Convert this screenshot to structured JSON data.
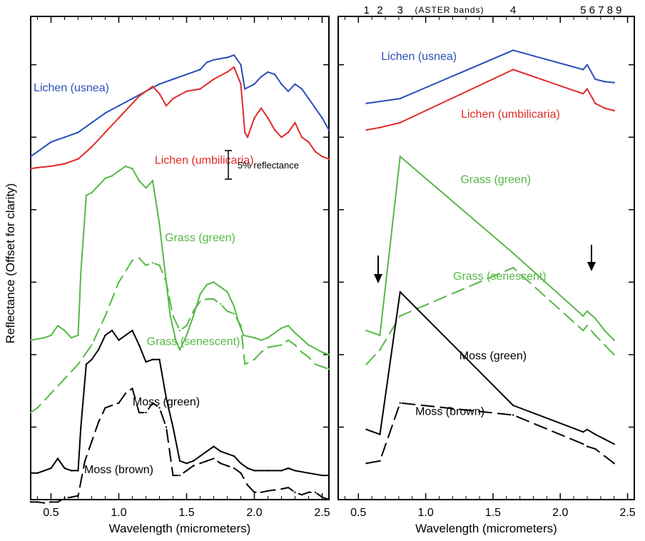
{
  "figure": {
    "ylabel": "Reflectance (Offset for clarity)",
    "top_axis": {
      "band_numbers": [
        "1",
        "2",
        "3",
        "4",
        "5",
        "6",
        "7",
        "8",
        "9"
      ],
      "label": "(ASTER bands)"
    }
  },
  "chart_data": [
    {
      "type": "line",
      "panel": "left",
      "xlabel": "Wavelength (micrometers)",
      "ylabel": "Reflectance (Offset for clarity)",
      "xlim": [
        0.35,
        2.55
      ],
      "ylim": [
        0,
        100
      ],
      "xticks": [
        0.5,
        1.0,
        1.5,
        2.0,
        2.5
      ],
      "xtick_labels": [
        "0.5",
        "1.0",
        "1.5",
        "2.0",
        "2.5"
      ],
      "scale_bar": {
        "label": "5% reflectance",
        "size": 5
      },
      "series": [
        {
          "name": "Lichen (usnea)",
          "color": "#2b4fb8",
          "dash": "solid",
          "label_at": [
            0.65,
            84.5
          ],
          "x": [
            0.35,
            0.4,
            0.45,
            0.5,
            0.55,
            0.6,
            0.7,
            0.8,
            0.9,
            1.0,
            1.1,
            1.2,
            1.3,
            1.4,
            1.5,
            1.6,
            1.65,
            1.7,
            1.8,
            1.85,
            1.9,
            1.93,
            2.0,
            2.05,
            2.1,
            2.15,
            2.2,
            2.25,
            2.3,
            2.35,
            2.4,
            2.45,
            2.5,
            2.55
          ],
          "y": [
            71,
            72,
            73,
            74,
            74.5,
            75,
            76,
            78,
            80,
            81.5,
            83,
            84.5,
            86,
            87,
            88,
            89,
            90.5,
            91,
            91.5,
            92,
            90,
            85,
            86,
            87.5,
            88.5,
            88,
            86,
            84.5,
            86,
            85,
            83,
            81,
            79,
            76.5
          ]
        },
        {
          "name": "Lichen (umbilicaria)",
          "color": "#e02b27",
          "dash": "solid",
          "label_at": [
            1.63,
            69.5
          ],
          "x": [
            0.35,
            0.4,
            0.5,
            0.6,
            0.7,
            0.8,
            0.9,
            1.0,
            1.1,
            1.15,
            1.2,
            1.25,
            1.3,
            1.35,
            1.4,
            1.5,
            1.6,
            1.7,
            1.8,
            1.85,
            1.9,
            1.93,
            1.95,
            2.0,
            2.05,
            2.1,
            2.15,
            2.2,
            2.25,
            2.3,
            2.35,
            2.4,
            2.45,
            2.5,
            2.55
          ],
          "y": [
            68.5,
            68.7,
            69,
            69.5,
            70.5,
            73,
            76,
            79,
            82,
            83.5,
            84.5,
            85.5,
            84,
            81.5,
            83,
            84.5,
            85,
            87,
            88.5,
            89.5,
            86,
            76,
            75,
            79,
            81,
            79,
            76.5,
            75,
            76,
            78,
            75,
            74,
            72,
            71,
            70.5
          ]
        },
        {
          "name": "Grass (green)",
          "color": "#56b846",
          "dash": "solid",
          "label_at": [
            1.6,
            53.5
          ],
          "x": [
            0.35,
            0.45,
            0.5,
            0.55,
            0.6,
            0.65,
            0.7,
            0.72,
            0.76,
            0.8,
            0.85,
            0.9,
            0.95,
            1.0,
            1.05,
            1.1,
            1.15,
            1.2,
            1.25,
            1.3,
            1.35,
            1.38,
            1.42,
            1.45,
            1.5,
            1.55,
            1.6,
            1.65,
            1.7,
            1.75,
            1.8,
            1.85,
            1.88,
            1.92,
            2.0,
            2.05,
            2.1,
            2.2,
            2.25,
            2.3,
            2.4,
            2.5,
            2.55
          ],
          "y": [
            33,
            33.5,
            34,
            36,
            35,
            33.5,
            34,
            47,
            63,
            63.5,
            65,
            66.5,
            67,
            68,
            69,
            68.5,
            66,
            64.5,
            66,
            57,
            45,
            38,
            33,
            31,
            34,
            38,
            42.5,
            44.5,
            45,
            44,
            43,
            40,
            37,
            34,
            33.5,
            33,
            33.5,
            35.5,
            36,
            34.5,
            32,
            30.5,
            30
          ]
        },
        {
          "name": "Grass (senescent)",
          "color": "#56b846",
          "dash": "dashed",
          "label_at": [
            1.55,
            32
          ],
          "x": [
            0.35,
            0.4,
            0.5,
            0.6,
            0.7,
            0.8,
            0.9,
            1.0,
            1.1,
            1.15,
            1.2,
            1.25,
            1.3,
            1.35,
            1.4,
            1.45,
            1.5,
            1.55,
            1.6,
            1.65,
            1.7,
            1.75,
            1.8,
            1.85,
            1.9,
            1.93,
            2.0,
            2.05,
            2.1,
            2.2,
            2.25,
            2.3,
            2.35,
            2.4,
            2.45,
            2.5,
            2.55
          ],
          "y": [
            18,
            19,
            22,
            25,
            28,
            32,
            38,
            45,
            49.5,
            50,
            48.5,
            49,
            48.5,
            45,
            38,
            35,
            36,
            39,
            41,
            41.5,
            41.5,
            40.5,
            39,
            38.5,
            36,
            28,
            29,
            30.5,
            31.5,
            32,
            33,
            32,
            30.5,
            29.5,
            28,
            27.5,
            27
          ]
        },
        {
          "name": "Moss (green)",
          "color": "#000000",
          "dash": "solid",
          "label_at": [
            1.35,
            19.5
          ],
          "x": [
            0.35,
            0.4,
            0.45,
            0.5,
            0.55,
            0.6,
            0.65,
            0.7,
            0.72,
            0.76,
            0.8,
            0.85,
            0.9,
            0.95,
            1.0,
            1.05,
            1.1,
            1.15,
            1.2,
            1.25,
            1.3,
            1.35,
            1.4,
            1.45,
            1.5,
            1.55,
            1.6,
            1.65,
            1.7,
            1.75,
            1.8,
            1.85,
            1.9,
            1.95,
            2.0,
            2.05,
            2.1,
            2.2,
            2.25,
            2.3,
            2.4,
            2.5,
            2.55
          ],
          "y": [
            5.5,
            5.5,
            6,
            6.5,
            8.5,
            6.5,
            6,
            6,
            15,
            28,
            29,
            31,
            34,
            35,
            33,
            34,
            35,
            32,
            28.5,
            29,
            29,
            21,
            15,
            8,
            7.5,
            8,
            9,
            10,
            11,
            10,
            9.5,
            9,
            7.5,
            6.5,
            6,
            6,
            6,
            6,
            6.5,
            6,
            5.5,
            5,
            5
          ]
        },
        {
          "name": "Moss (brown)",
          "color": "#000000",
          "dash": "dashed",
          "label_at": [
            1.0,
            5.5
          ],
          "x": [
            0.35,
            0.4,
            0.45,
            0.5,
            0.55,
            0.6,
            0.65,
            0.7,
            0.75,
            0.8,
            0.85,
            0.9,
            0.95,
            1.0,
            1.05,
            1.1,
            1.15,
            1.2,
            1.25,
            1.3,
            1.35,
            1.4,
            1.45,
            1.5,
            1.55,
            1.6,
            1.65,
            1.7,
            1.75,
            1.8,
            1.85,
            1.9,
            1.95,
            2.0,
            2.05,
            2.1,
            2.15,
            2.2,
            2.25,
            2.3,
            2.35,
            2.4,
            2.45,
            2.5,
            2.55
          ],
          "y": [
            -0.5,
            -0.5,
            -0.7,
            -0.5,
            -0.5,
            0.3,
            0.5,
            0.8,
            8,
            12,
            16,
            19,
            19.5,
            20,
            22,
            23,
            18,
            18,
            20,
            19,
            15,
            5,
            5,
            6,
            7,
            7.5,
            8,
            8.5,
            7.5,
            7,
            6.5,
            5.5,
            3,
            1.5,
            1.5,
            1.8,
            2,
            2.2,
            2.5,
            1.5,
            1,
            1.5,
            1.5,
            0.5,
            0
          ]
        }
      ]
    },
    {
      "type": "line",
      "panel": "right",
      "xlabel": "Wavelength (micrometers)",
      "xlim": [
        0.35,
        2.55
      ],
      "ylim": [
        0,
        100
      ],
      "xticks": [
        0.5,
        1.0,
        1.5,
        2.0,
        2.5
      ],
      "xtick_labels": [
        "0.5",
        "1.0",
        "1.5",
        "2.0",
        "2.5"
      ],
      "aster_band_centers": [
        0.56,
        0.66,
        0.81,
        1.65,
        2.17,
        2.21,
        2.26,
        2.33,
        2.4
      ],
      "arrows_at": [
        0.66,
        2.17
      ],
      "series": [
        {
          "name": "Lichen (usnea)",
          "color": "#2b4fb8",
          "dash": "solid",
          "label_at": [
            0.95,
            91
          ],
          "x": [
            0.56,
            0.81,
            1.65,
            2.17,
            2.2,
            2.26,
            2.33,
            2.4
          ],
          "y": [
            82,
            83,
            93,
            89,
            90,
            87,
            86.5,
            86.3
          ]
        },
        {
          "name": "Lichen (umbilicaria)",
          "color": "#e02b27",
          "dash": "solid",
          "label_at": [
            1.63,
            79
          ],
          "x": [
            0.56,
            0.66,
            0.81,
            1.65,
            2.17,
            2.2,
            2.26,
            2.33,
            2.4
          ],
          "y": [
            76.5,
            77,
            78,
            89,
            84,
            85,
            82,
            81,
            80.5
          ]
        },
        {
          "name": "Grass (green)",
          "color": "#56b846",
          "dash": "solid",
          "label_at": [
            1.52,
            65.5
          ],
          "x": [
            0.56,
            0.66,
            0.81,
            1.65,
            2.17,
            2.2,
            2.26,
            2.33,
            2.4
          ],
          "y": [
            35,
            34,
            71,
            51,
            38,
            39,
            37.5,
            35,
            33
          ]
        },
        {
          "name": "Grass (senescent)",
          "color": "#56b846",
          "dash": "dashed",
          "label_at": [
            1.55,
            45.5
          ],
          "x": [
            0.56,
            0.66,
            0.81,
            1.65,
            2.17,
            2.2,
            2.26,
            2.33,
            2.4
          ],
          "y": [
            28,
            31,
            38,
            48,
            35,
            36,
            34,
            32,
            30
          ]
        },
        {
          "name": "Moss (green)",
          "color": "#000000",
          "dash": "solid",
          "label_at": [
            1.5,
            29
          ],
          "x": [
            0.56,
            0.66,
            0.81,
            1.65,
            2.17,
            2.2,
            2.26,
            2.33,
            2.4
          ],
          "y": [
            14.5,
            13.5,
            43,
            19.5,
            14,
            14.5,
            13.5,
            12.5,
            11.5
          ]
        },
        {
          "name": "Moss (brown)",
          "color": "#000000",
          "dash": "dashed",
          "label_at": [
            1.18,
            17.5
          ],
          "x": [
            0.56,
            0.66,
            0.81,
            1.65,
            2.17,
            2.2,
            2.26,
            2.33,
            2.4
          ],
          "y": [
            7.5,
            8,
            20,
            17.5,
            11.5,
            11,
            10.5,
            9,
            7.5
          ]
        }
      ]
    }
  ]
}
